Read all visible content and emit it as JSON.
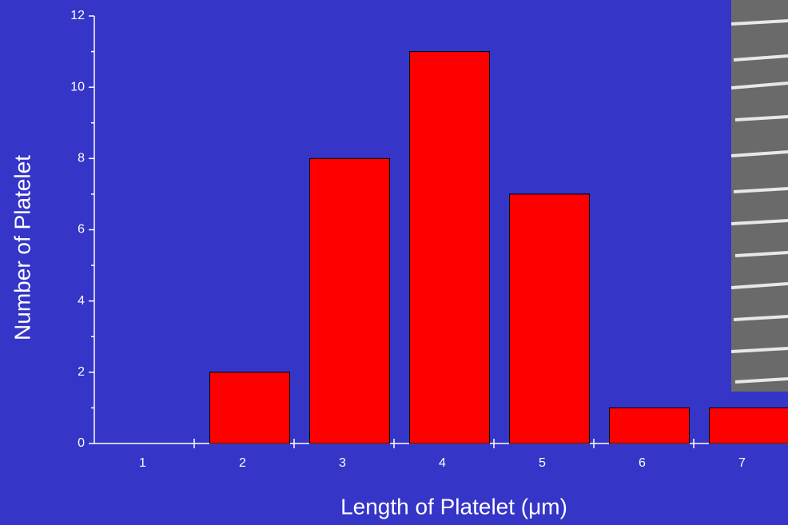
{
  "chart_data": {
    "type": "bar",
    "x_label": "Length of Platelet (μm)",
    "y_label": "Number of Platelet",
    "categories": [
      "1",
      "2",
      "3",
      "4",
      "5",
      "6",
      "7"
    ],
    "values": [
      0,
      2,
      8,
      11,
      7,
      1,
      1
    ],
    "color": "#ff0000",
    "ylim": [
      0,
      12
    ],
    "yticks": [
      0,
      2,
      4,
      6,
      8,
      10,
      12
    ]
  }
}
